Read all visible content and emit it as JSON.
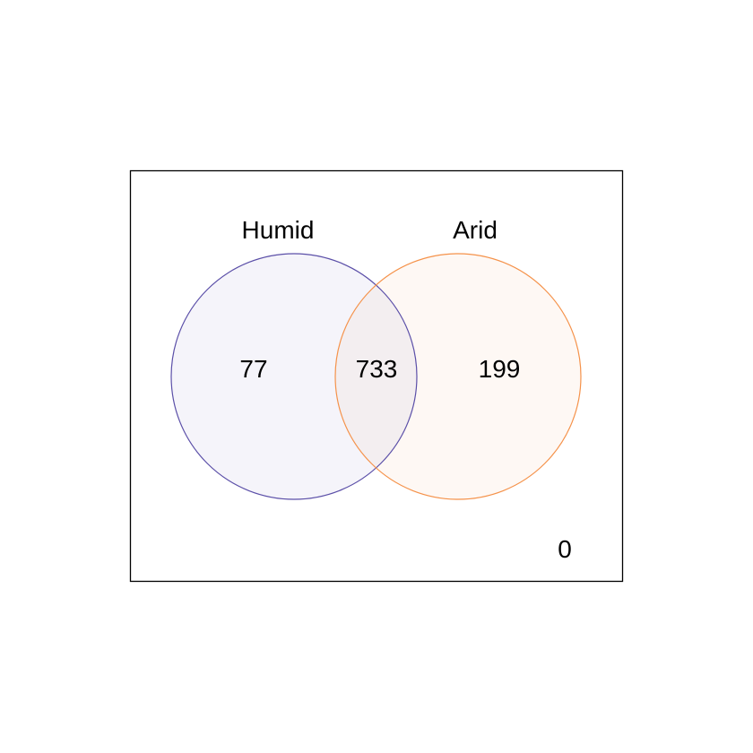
{
  "diagram": {
    "type": "venn",
    "sets": [
      {
        "name": "Humid",
        "stroke_color": "#5b4fa8",
        "fill_color": "#f5f4fa",
        "only_count": "77"
      },
      {
        "name": "Arid",
        "stroke_color": "#f5924a",
        "fill_color": "#fef8f4",
        "only_count": "199"
      }
    ],
    "intersection_count": "733",
    "intersection_fill_color": "#f3eef0",
    "outside_count": "0",
    "frame_color": "#000000"
  }
}
